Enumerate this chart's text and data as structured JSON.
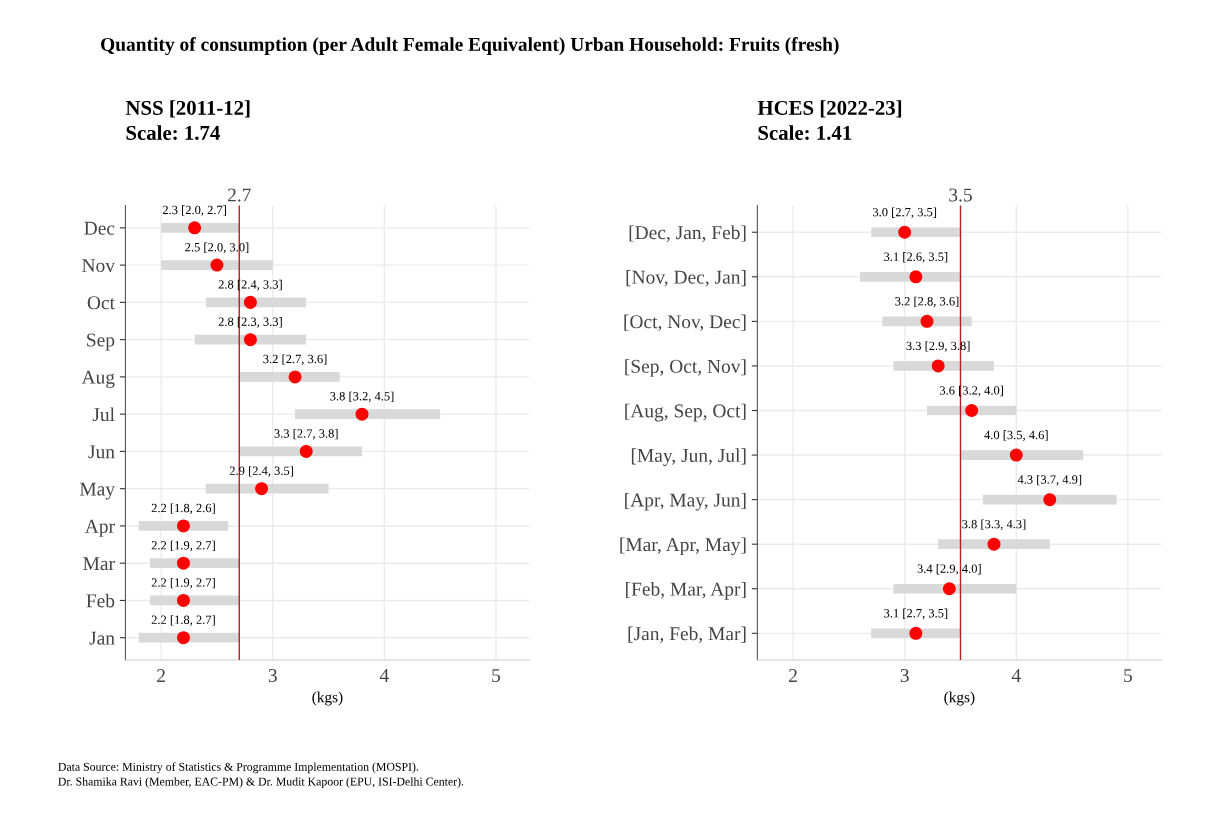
{
  "chart_data": [
    {
      "type": "other",
      "title": "Quantity of consumption (per Adult Female Equivalent) Urban Household: Fruits (fresh)",
      "annotations": [
        "Data Source: Ministry of Statistics & Programme Implementation (MOSPI).",
        "Dr. Shamika Ravi (Member, EAC-PM) & Dr. Mudit Kapoor (EPU, ISI-Delhi Center)."
      ]
    },
    {
      "type": "scatter",
      "orientation": "horizontal",
      "title": "NSS [2011-12]",
      "subtitle": "Scale: 1.74",
      "xlabel": "(kgs)",
      "categories": [
        "Dec",
        "Nov",
        "Oct",
        "Sep",
        "Aug",
        "Jul",
        "Jun",
        "May",
        "Apr",
        "Mar",
        "Feb",
        "Jan"
      ],
      "series": [
        {
          "color": "#ff0000",
          "values": [
            2.3,
            2.5,
            2.8,
            2.8,
            3.2,
            3.8,
            3.3,
            2.9,
            2.2,
            2.2,
            2.2,
            2.2
          ],
          "errors": [
            [
              2.0,
              2.7
            ],
            [
              2.0,
              3.0
            ],
            [
              2.4,
              3.3
            ],
            [
              2.3,
              3.3
            ],
            [
              2.7,
              3.6
            ],
            [
              3.2,
              4.5
            ],
            [
              2.7,
              3.8
            ],
            [
              2.4,
              3.5
            ],
            [
              1.8,
              2.6
            ],
            [
              1.9,
              2.7
            ],
            [
              1.9,
              2.7
            ],
            [
              1.8,
              2.7
            ]
          ],
          "value_labels": [
            "2.3 [2.0, 2.7]",
            "2.5 [2.0, 3.0]",
            "2.8 [2.4, 3.3]",
            "2.8 [2.3, 3.3]",
            "3.2 [2.7, 3.6]",
            "3.8 [3.2, 4.5]",
            "3.3 [2.7, 3.8]",
            "2.9 [2.4, 3.5]",
            "2.2 [1.8, 2.6]",
            "2.2 [1.9, 2.7]",
            "2.2 [1.9, 2.7]",
            "2.2 [1.8, 2.7]"
          ]
        }
      ],
      "xlim": [
        1.68,
        5.3
      ],
      "xticks": [
        2,
        3,
        4,
        5
      ],
      "ref_lines": [
        {
          "axis": "x",
          "value": 2.7,
          "label": "2.7",
          "color": "#b22222"
        }
      ],
      "grid": true,
      "marker": "circle"
    },
    {
      "type": "scatter",
      "orientation": "horizontal",
      "title": "HCES [2022-23]",
      "subtitle": "Scale: 1.41",
      "xlabel": "(kgs)",
      "categories": [
        "[Dec, Jan, Feb]",
        "[Nov, Dec, Jan]",
        "[Oct, Nov, Dec]",
        "[Sep, Oct, Nov]",
        "[Aug, Sep, Oct]",
        "[May, Jun, Jul]",
        "[Apr, May, Jun]",
        "[Mar, Apr, May]",
        "[Feb, Mar, Apr]",
        "[Jan, Feb, Mar]"
      ],
      "series": [
        {
          "color": "#ff0000",
          "values": [
            3.0,
            3.1,
            3.2,
            3.3,
            3.6,
            4.0,
            4.3,
            3.8,
            3.4,
            3.1
          ],
          "errors": [
            [
              2.7,
              3.5
            ],
            [
              2.6,
              3.5
            ],
            [
              2.8,
              3.6
            ],
            [
              2.9,
              3.8
            ],
            [
              3.2,
              4.0
            ],
            [
              3.5,
              4.6
            ],
            [
              3.7,
              4.9
            ],
            [
              3.3,
              4.3
            ],
            [
              2.9,
              4.0
            ],
            [
              2.7,
              3.5
            ]
          ],
          "value_labels": [
            "3.0 [2.7, 3.5]",
            "3.1 [2.6, 3.5]",
            "3.2 [2.8, 3.6]",
            "3.3 [2.9, 3.8]",
            "3.6 [3.2, 4.0]",
            "4.0 [3.5, 4.6]",
            "4.3 [3.7, 4.9]",
            "3.8 [3.3, 4.3]",
            "3.4 [2.9, 4.0]",
            "3.1 [2.7, 3.5]"
          ]
        }
      ],
      "xlim": [
        1.68,
        5.3
      ],
      "xticks": [
        2,
        3,
        4,
        5
      ],
      "ref_lines": [
        {
          "axis": "x",
          "value": 3.5,
          "label": "3.5",
          "color": "#b22222"
        }
      ],
      "grid": true,
      "marker": "circle"
    }
  ]
}
